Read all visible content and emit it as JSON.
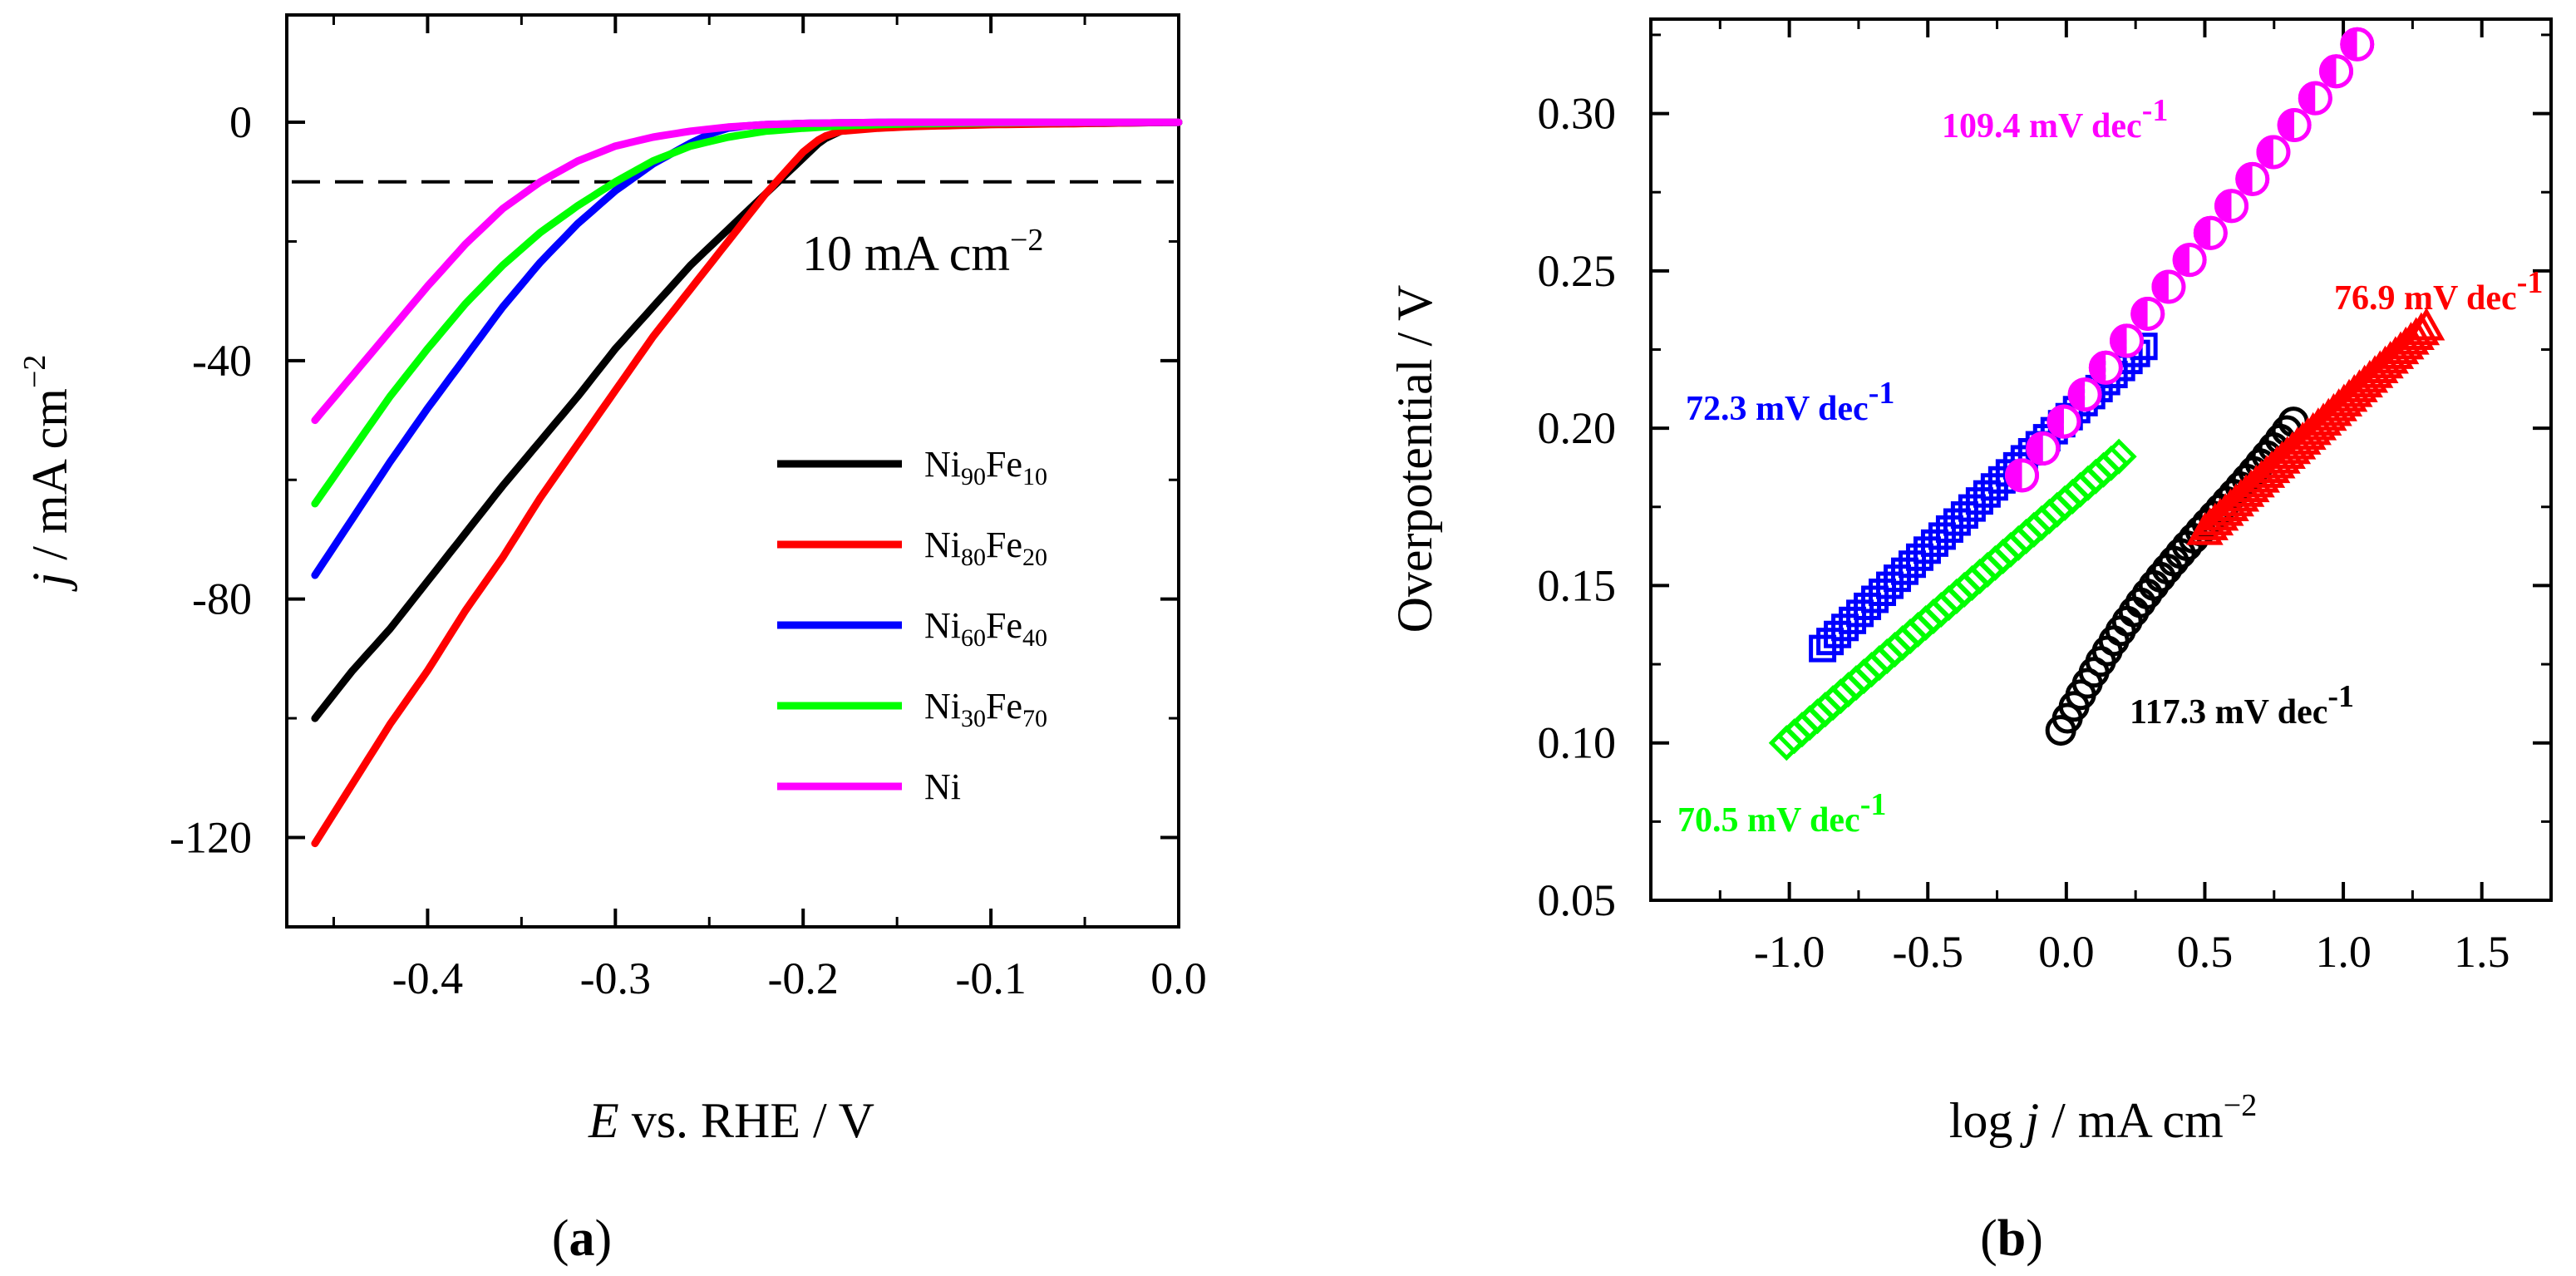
{
  "chart_data": [
    {
      "type": "line",
      "panel_label": "a",
      "xlabel_italic": "E",
      "xlabel_rest": " vs. RHE / V",
      "ylabel_italic": "j",
      "ylabel_rest": " / mA cm",
      "ylabel_exp": "−2",
      "xlim": [
        -0.475,
        0.0
      ],
      "ylim": [
        -135,
        18
      ],
      "xticks": [
        "-0.4",
        "-0.3",
        "-0.2",
        "-0.1",
        "0.0"
      ],
      "xtick_values": [
        -0.4,
        -0.3,
        -0.2,
        -0.1,
        0.0
      ],
      "yticks": [
        "0",
        "-40",
        "-80",
        "-120"
      ],
      "ytick_values": [
        0,
        -40,
        -80,
        -120
      ],
      "reference_line": {
        "y": -10,
        "label": "10 mA cm",
        "label_exp": "−2"
      },
      "series": [
        {
          "name": "Ni90Fe10",
          "base": "Ni",
          "sub1": "90",
          "mid": "Fe",
          "sub2": "10",
          "color": "#000000",
          "x": [
            -0.46,
            -0.44,
            -0.42,
            -0.4,
            -0.38,
            -0.36,
            -0.34,
            -0.32,
            -0.3,
            -0.28,
            -0.26,
            -0.24,
            -0.22,
            -0.21,
            -0.2,
            -0.19,
            -0.18,
            -0.16,
            -0.14,
            -0.1,
            -0.05,
            0.0
          ],
          "y": [
            -100,
            -92,
            -85,
            -77,
            -69,
            -61,
            -53.5,
            -46,
            -38,
            -31,
            -24,
            -18,
            -12,
            -9,
            -6,
            -3,
            -1.5,
            -0.8,
            -0.5,
            -0.3,
            -0.2,
            0
          ]
        },
        {
          "name": "Ni80Fe20",
          "base": "Ni",
          "sub1": "80",
          "mid": "Fe",
          "sub2": "20",
          "color": "#ff0000",
          "x": [
            -0.46,
            -0.44,
            -0.42,
            -0.4,
            -0.38,
            -0.36,
            -0.34,
            -0.32,
            -0.3,
            -0.28,
            -0.26,
            -0.24,
            -0.22,
            -0.2,
            -0.19,
            -0.18,
            -0.16,
            -0.14,
            -0.1,
            -0.05,
            0.0
          ],
          "y": [
            -121,
            -111,
            -101,
            -92,
            -82,
            -73,
            -63,
            -54,
            -45,
            -36,
            -28,
            -20,
            -12,
            -5,
            -2.5,
            -1.5,
            -1.0,
            -0.7,
            -0.4,
            -0.2,
            0
          ]
        },
        {
          "name": "Ni60Fe40",
          "base": "Ni",
          "sub1": "60",
          "mid": "Fe",
          "sub2": "40",
          "color": "#0000ff",
          "x": [
            -0.46,
            -0.44,
            -0.42,
            -0.4,
            -0.38,
            -0.36,
            -0.34,
            -0.32,
            -0.3,
            -0.28,
            -0.26,
            -0.25,
            -0.24,
            -0.23,
            -0.22,
            -0.2,
            -0.18,
            -0.15,
            -0.1,
            -0.05,
            0.0
          ],
          "y": [
            -76,
            -66.5,
            -57,
            -48,
            -39.5,
            -31,
            -23.5,
            -17,
            -11.5,
            -7,
            -3.5,
            -2,
            -1,
            -0.6,
            -0.4,
            -0.2,
            -0.1,
            0,
            0,
            0,
            0
          ]
        },
        {
          "name": "Ni30Fe70",
          "base": "Ni",
          "sub1": "30",
          "mid": "Fe",
          "sub2": "70",
          "color": "#00ff00",
          "x": [
            -0.46,
            -0.44,
            -0.42,
            -0.4,
            -0.38,
            -0.36,
            -0.34,
            -0.32,
            -0.3,
            -0.28,
            -0.26,
            -0.24,
            -0.22,
            -0.2,
            -0.18,
            -0.15,
            -0.1,
            -0.05,
            0.0
          ],
          "y": [
            -64,
            -55,
            -46,
            -38,
            -30.5,
            -24,
            -18.5,
            -14,
            -10,
            -6.5,
            -4,
            -2.5,
            -1.5,
            -1,
            -0.6,
            -0.3,
            -0.1,
            0,
            0
          ]
        },
        {
          "name": "Ni",
          "base": "Ni",
          "sub1": "",
          "mid": "",
          "sub2": "",
          "color": "#ff00ff",
          "x": [
            -0.46,
            -0.44,
            -0.42,
            -0.4,
            -0.38,
            -0.36,
            -0.34,
            -0.32,
            -0.3,
            -0.28,
            -0.26,
            -0.24,
            -0.22,
            -0.2,
            -0.18,
            -0.15,
            -0.1,
            -0.05,
            0.0
          ],
          "y": [
            -50,
            -42.5,
            -35,
            -27.5,
            -20.5,
            -14.5,
            -10,
            -6.5,
            -4,
            -2.5,
            -1.5,
            -0.8,
            -0.4,
            -0.2,
            -0.1,
            0,
            0,
            0,
            0
          ]
        }
      ]
    },
    {
      "type": "scatter",
      "panel_label": "b",
      "xlabel_pre": "log ",
      "xlabel_italic": "j",
      "xlabel_rest": " / mA cm",
      "xlabel_exp": "−2",
      "ylabel": "Overpotential / V",
      "xlim": [
        -1.5,
        1.75
      ],
      "ylim": [
        0.05,
        0.33
      ],
      "xticks": [
        "-1.0",
        "-0.5",
        "0.0",
        "0.5",
        "1.0",
        "1.5"
      ],
      "xtick_values": [
        -1.0,
        -0.5,
        0.0,
        0.5,
        1.0,
        1.5
      ],
      "yticks": [
        "0.30",
        "0.25",
        "0.20",
        "0.15",
        "0.10",
        "0.05"
      ],
      "ytick_values": [
        0.3,
        0.25,
        0.2,
        0.15,
        0.1,
        0.05
      ],
      "series": [
        {
          "name": "Ni60Fe40",
          "marker": "square",
          "color": "#0000ff",
          "slope_label": "72.3 mV dec",
          "x_start": -0.88,
          "x_end": 0.28,
          "y_start": 0.13,
          "y_end": 0.226
        },
        {
          "name": "Ni30Fe70",
          "marker": "diamond",
          "color": "#00ff00",
          "slope_label": "70.5 mV dec",
          "x_start": -1.01,
          "x_end": 0.19,
          "y_start": 0.1,
          "y_end": 0.191
        },
        {
          "name": "Ni90Fe10",
          "marker": "circle",
          "color": "#000000",
          "slope_label": "117.3 mV dec",
          "x_start": -0.02,
          "x_end": 0.82,
          "y_start": 0.104,
          "y_end": 0.202
        },
        {
          "name": "Ni80Fe20",
          "marker": "triangle",
          "color": "#ff0000",
          "slope_label": "76.9 mV dec",
          "x_start": 0.5,
          "x_end": 1.3,
          "y_start": 0.167,
          "y_end": 0.232
        },
        {
          "name": "Ni",
          "marker": "half-filled-circle",
          "color": "#ff00ff",
          "slope_label": "109.4 mV dec",
          "x_start": -0.16,
          "x_end": 1.05,
          "y_start": 0.185,
          "y_end": 0.322
        }
      ],
      "slope_exp": "-1"
    }
  ]
}
